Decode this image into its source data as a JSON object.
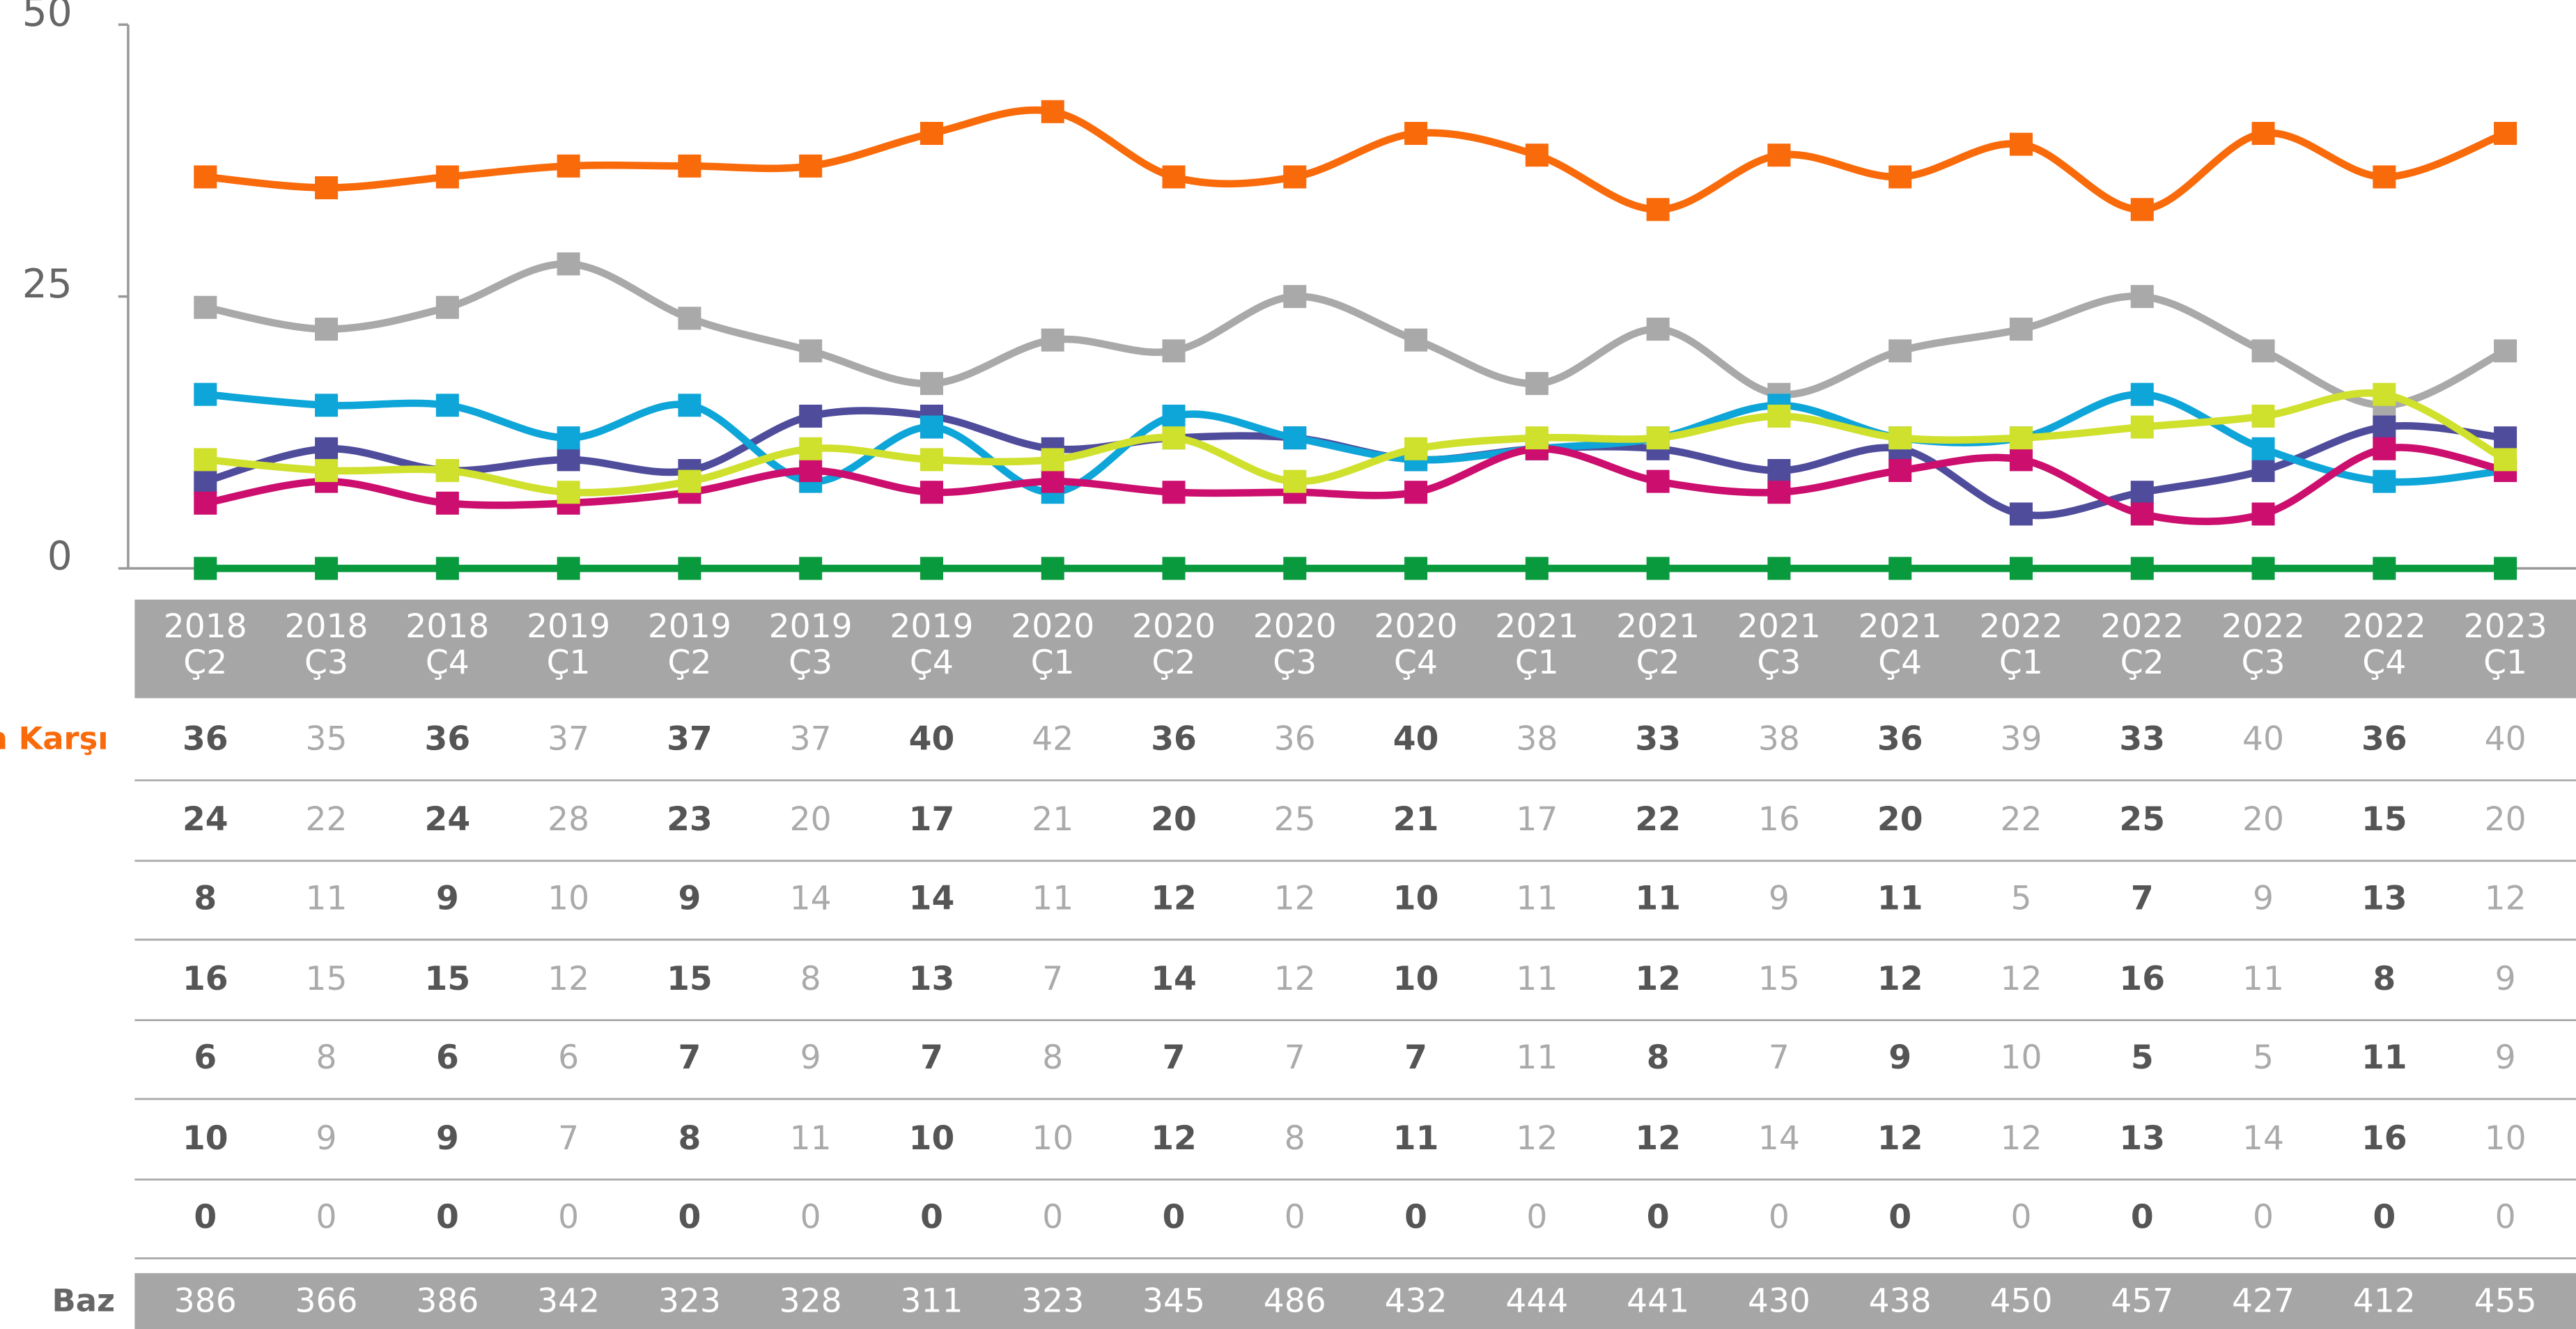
{
  "chart_data": {
    "type": "line",
    "categories": [
      "2018 Ç2",
      "2018 Ç3",
      "2018 Ç4",
      "2019 Ç1",
      "2019 Ç2",
      "2019 Ç3",
      "2019 Ç4",
      "2020 Ç1",
      "2020 Ç2",
      "2020 Ç3",
      "2020 Ç4",
      "2021 Ç1",
      "2021 Ç2",
      "2021 Ç3",
      "2021 Ç4",
      "2022 Ç1",
      "2022 Ç2",
      "2022 Ç3",
      "2022 Ç4",
      "2023 Ç1"
    ],
    "series": [
      {
        "name": "ra Karşı",
        "color": "#f96a0a",
        "values": [
          36,
          35,
          36,
          37,
          37,
          37,
          40,
          42,
          36,
          36,
          40,
          38,
          33,
          38,
          36,
          39,
          33,
          40,
          36,
          40
        ]
      },
      {
        "color": "#a9a9a9",
        "values": [
          24,
          22,
          24,
          28,
          23,
          20,
          17,
          21,
          20,
          25,
          21,
          17,
          22,
          16,
          20,
          22,
          25,
          20,
          15,
          20
        ]
      },
      {
        "color": "#4f4c9c",
        "values": [
          8,
          11,
          9,
          10,
          9,
          14,
          14,
          11,
          12,
          12,
          10,
          11,
          11,
          9,
          11,
          5,
          7,
          9,
          13,
          12
        ]
      },
      {
        "color": "#0ea5d8",
        "values": [
          16,
          15,
          15,
          12,
          15,
          8,
          13,
          7,
          14,
          12,
          10,
          11,
          12,
          15,
          12,
          12,
          16,
          11,
          8,
          9
        ]
      },
      {
        "color": "#cc0e6e",
        "values": [
          6,
          8,
          6,
          6,
          7,
          9,
          7,
          8,
          7,
          7,
          7,
          11,
          8,
          7,
          9,
          10,
          5,
          5,
          11,
          9
        ]
      },
      {
        "color": "#cfe02d",
        "values": [
          10,
          9,
          9,
          7,
          8,
          11,
          10,
          10,
          12,
          8,
          11,
          12,
          12,
          14,
          12,
          12,
          13,
          14,
          16,
          10
        ]
      },
      {
        "color": "#0a9a3e",
        "values": [
          0,
          0,
          0,
          0,
          0,
          0,
          0,
          0,
          0,
          0,
          0,
          0,
          0,
          0,
          0,
          0,
          0,
          0,
          0,
          0
        ]
      }
    ],
    "base_label": "Baz",
    "base_values": [
      386,
      366,
      386,
      342,
      323,
      328,
      311,
      323,
      345,
      486,
      432,
      444,
      441,
      430,
      438,
      450,
      457,
      427,
      412,
      455
    ],
    "ylim": [
      0,
      50
    ],
    "yticks": [
      0,
      25,
      50
    ]
  }
}
